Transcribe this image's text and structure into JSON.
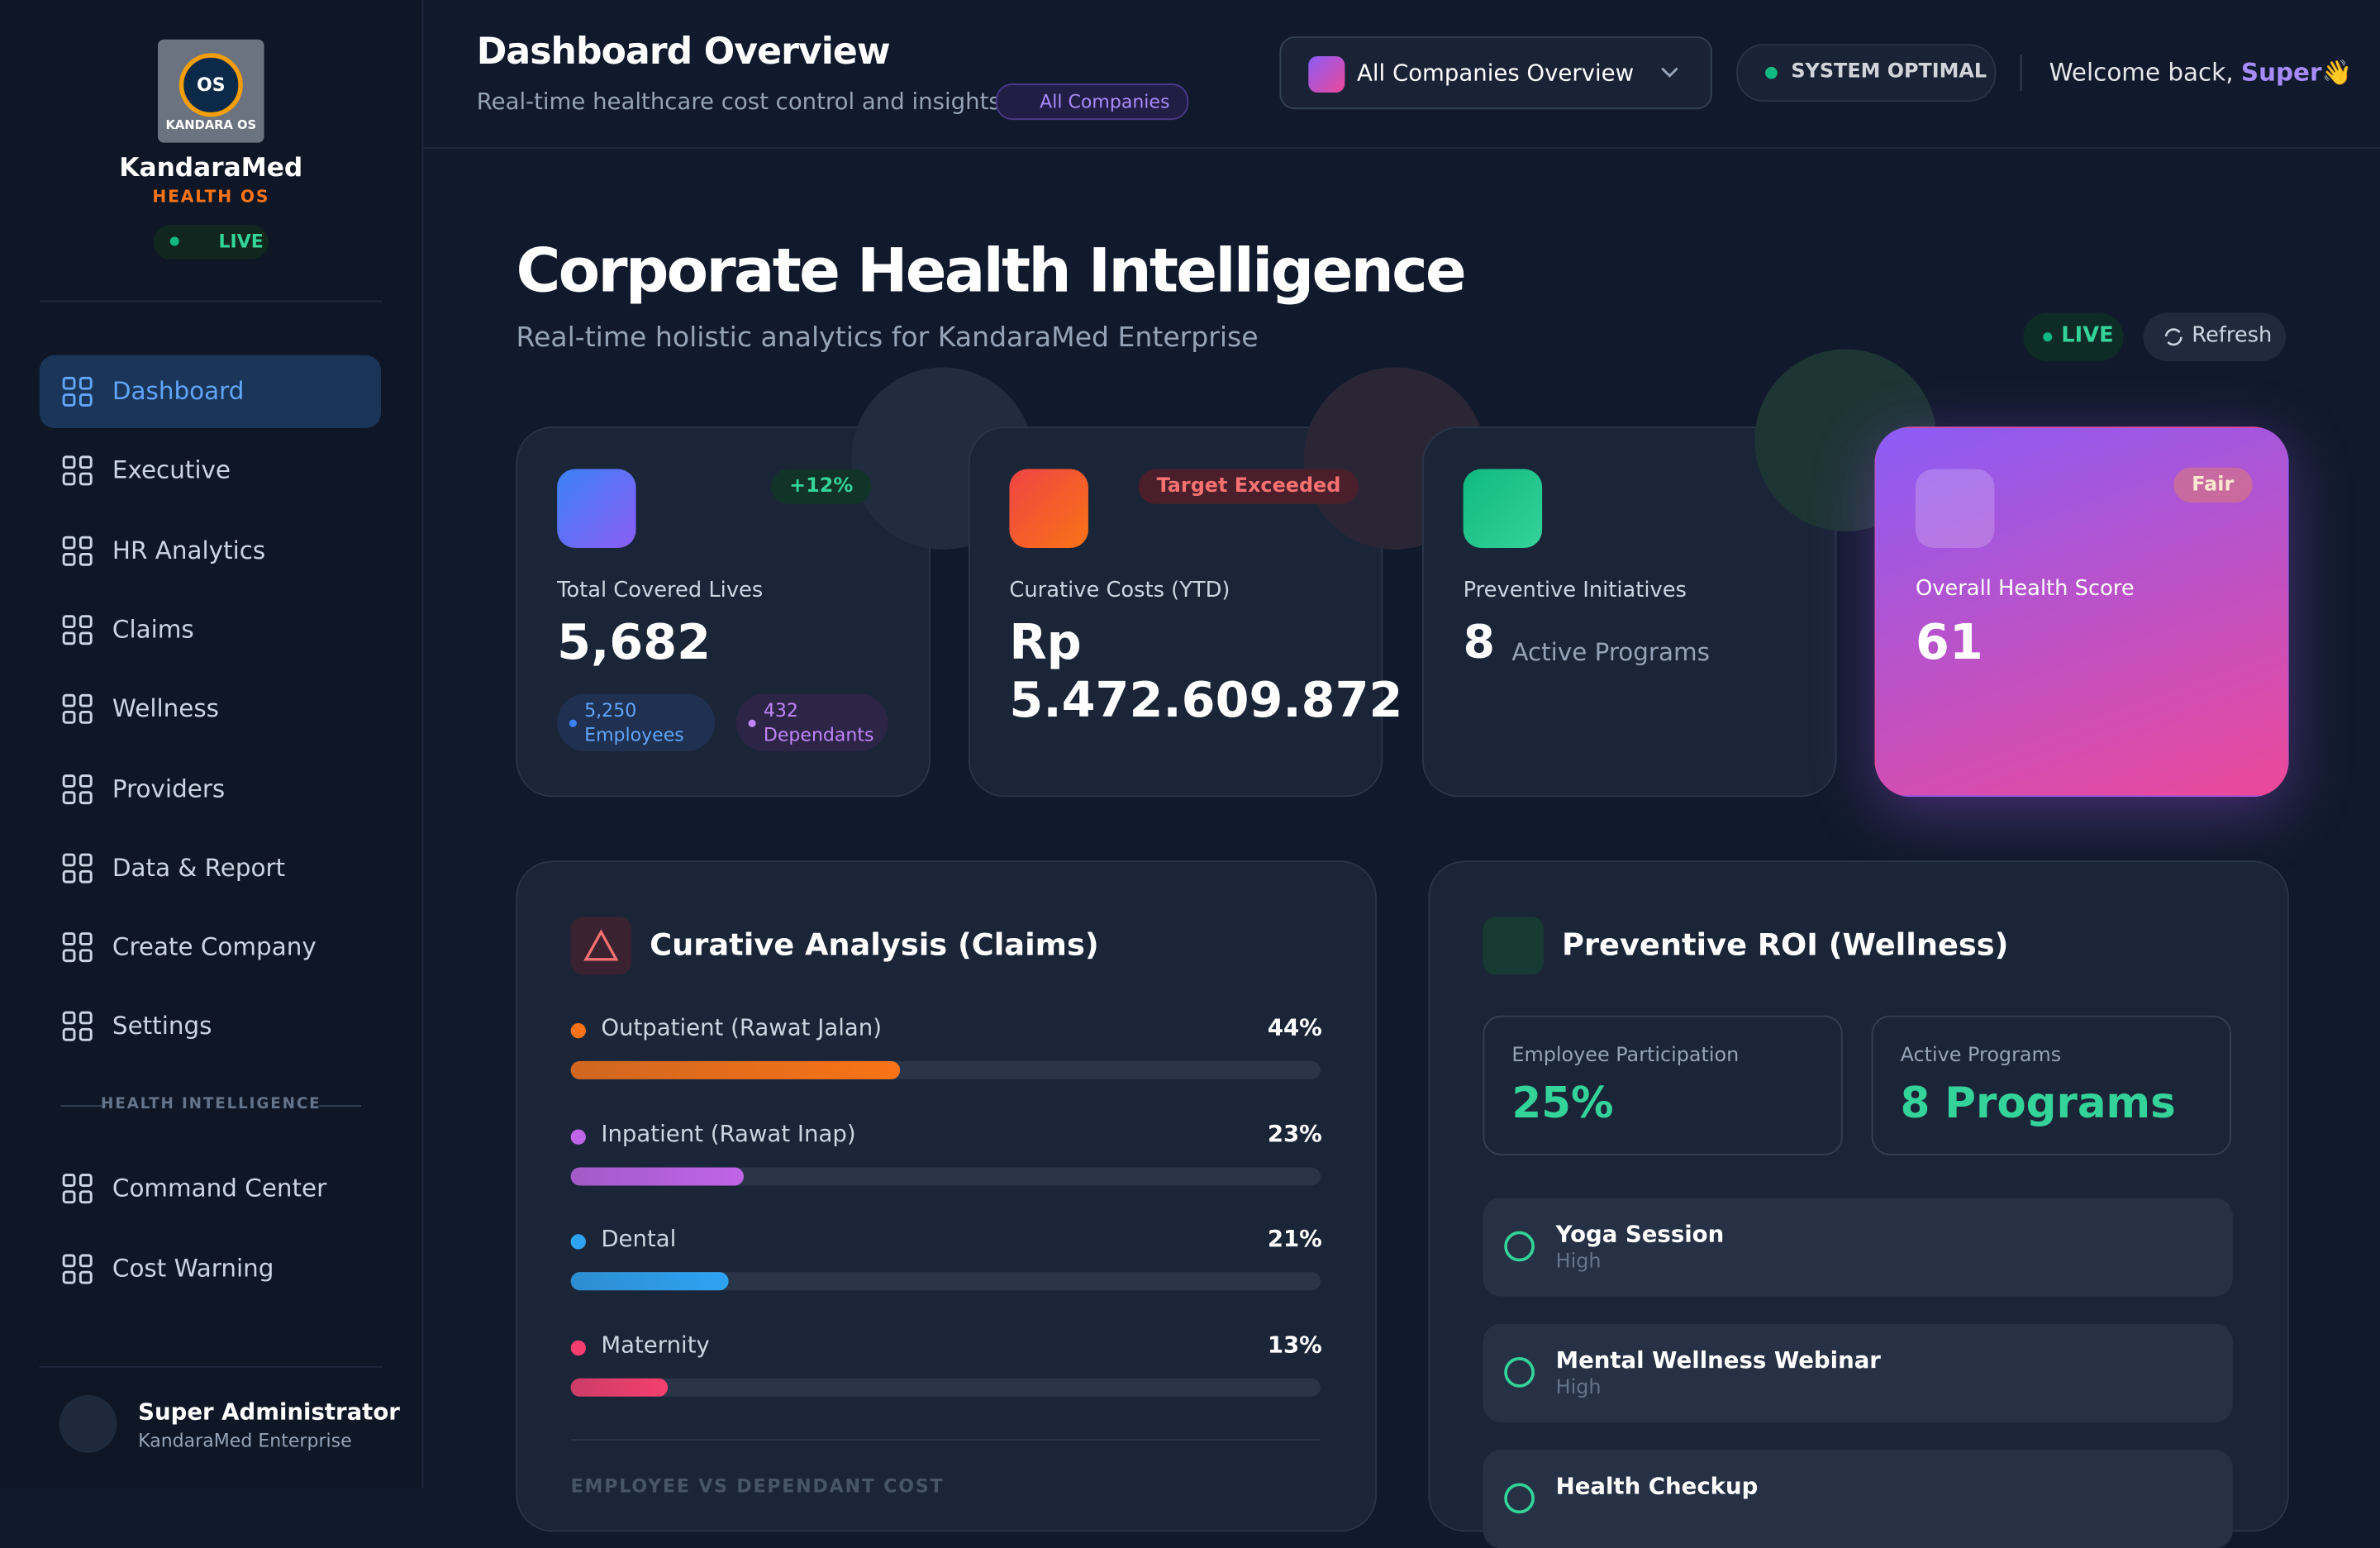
{
  "sidebar": {
    "logo_text": "OS",
    "logo_caption": "KANDARA OS",
    "brand": "KandaraMed",
    "subtitle": "HEALTH OS",
    "status": "LIVE",
    "nav": [
      "Dashboard",
      "Executive",
      "HR Analytics",
      "Claims",
      "Wellness",
      "Providers",
      "Data & Report",
      "Create Company",
      "Settings"
    ],
    "section_label": "HEALTH INTELLIGENCE",
    "section_nav": [
      "Command Center",
      "Cost Warning"
    ],
    "user": {
      "name": "Super Administrator",
      "org": "KandaraMed Enterprise"
    }
  },
  "header": {
    "title": "Dashboard Overview",
    "subtitle": "Real-time healthcare cost control and insights",
    "badge": "All Companies",
    "selector": "All Companies Overview",
    "system_status": "SYSTEM OPTIMAL",
    "welcome": "Welcome back,",
    "user": "Super",
    "wave": "👋"
  },
  "hero": {
    "title": "Corporate Health Intelligence",
    "subtitle": "Real-time holistic analytics for KandaraMed Enterprise",
    "live": "LIVE",
    "refresh": "Refresh"
  },
  "kpis": [
    {
      "label": "Total Covered Lives",
      "value": "5,682",
      "badge": "+12%",
      "chips": [
        {
          "value": "5,250",
          "label": "Employees"
        },
        {
          "value": "432",
          "label": "Dependants"
        }
      ]
    },
    {
      "label": "Curative Costs (YTD)",
      "value": "Rp 5.472.609.872",
      "badge": "Target Exceeded"
    },
    {
      "label": "Preventive Initiatives",
      "value": "8",
      "unit": "Active Programs"
    },
    {
      "label": "Overall Health Score",
      "value": "61",
      "badge": "Fair"
    }
  ],
  "curative": {
    "title": "Curative Analysis (Claims)",
    "items": [
      {
        "name": "Outpatient (Rawat Jalan)",
        "value": 44,
        "value_label": "44%",
        "color": "#f97316"
      },
      {
        "name": "Inpatient (Rawat Inap)",
        "value": 23,
        "value_label": "23%",
        "color": "#c064e8"
      },
      {
        "name": "Dental",
        "value": 21,
        "value_label": "21%",
        "color": "#2ea3f2"
      },
      {
        "name": "Maternity",
        "value": 13,
        "value_label": "13%",
        "color": "#f43f6e"
      }
    ],
    "next_section": "EMPLOYEE VS DEPENDANT COST"
  },
  "preventive": {
    "title": "Preventive ROI (Wellness)",
    "stats": [
      {
        "label": "Employee Participation",
        "value": "25%"
      },
      {
        "label": "Active Programs",
        "value": "8 Programs"
      }
    ],
    "programs": [
      {
        "name": "Yoga Session",
        "level": "High"
      },
      {
        "name": "Mental Wellness Webinar",
        "level": "High"
      },
      {
        "name": "Health Checkup"
      }
    ]
  }
}
